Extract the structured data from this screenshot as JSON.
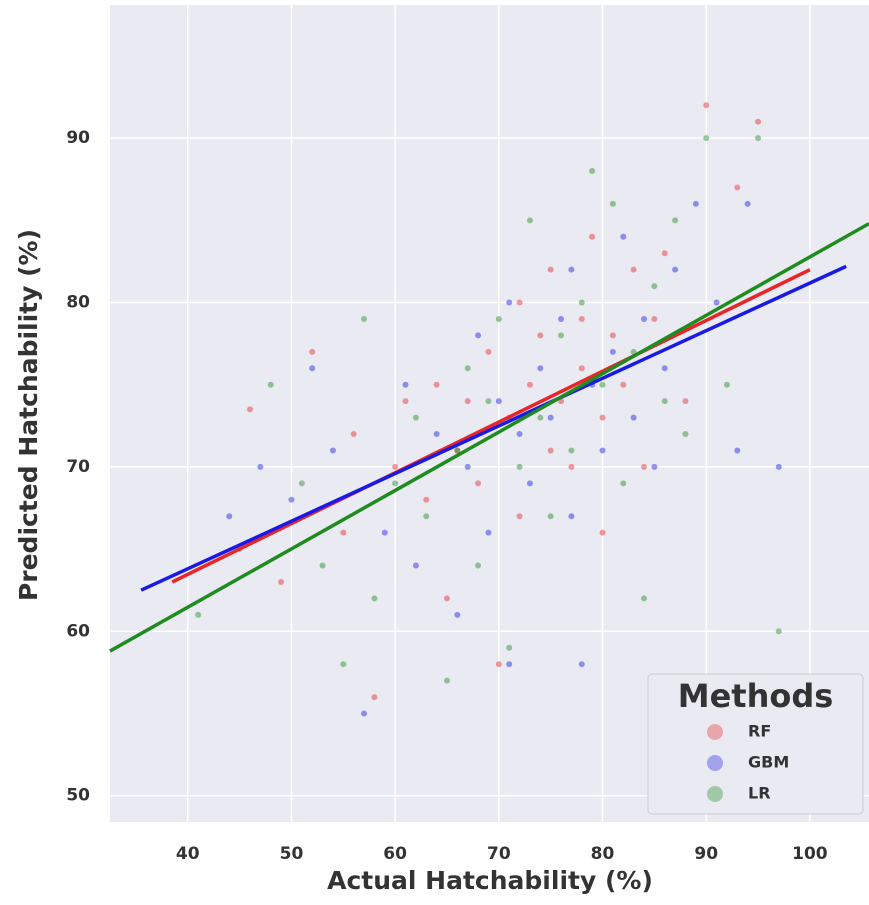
{
  "chart_data": {
    "type": "scatter",
    "xlabel": "Actual Hatchability (%)",
    "ylabel": "Predicted Hatchability (%)",
    "xlim": [
      32.5,
      105.7
    ],
    "ylim": [
      48.4,
      98.1
    ],
    "xticks": [
      40,
      50,
      60,
      70,
      80,
      90,
      100
    ],
    "yticks": [
      50,
      60,
      70,
      80,
      90
    ],
    "grid": true,
    "legend_title": "Methods",
    "legend_position": "lower right",
    "series": [
      {
        "name": "RF",
        "color": "#e8262a",
        "x": [
          46,
          49,
          52,
          55,
          56,
          58,
          60,
          61,
          63,
          64,
          65,
          66,
          67,
          68,
          69,
          70,
          71,
          72,
          72,
          73,
          74,
          75,
          75,
          76,
          77,
          78,
          78,
          79,
          80,
          80,
          81,
          82,
          83,
          84,
          85,
          86,
          88,
          90,
          93,
          95
        ],
        "values": [
          73.5,
          63,
          77,
          66,
          72,
          56,
          70,
          74,
          68,
          75,
          62,
          71,
          74,
          69,
          77,
          58,
          73,
          80,
          67,
          75,
          78,
          71,
          82,
          74,
          70,
          79,
          76,
          84,
          73,
          66,
          78,
          75,
          82,
          70,
          79,
          83,
          74,
          92,
          87,
          91
        ],
        "fit": {
          "x": [
            38.5,
            100
          ],
          "values": [
            63,
            82
          ]
        }
      },
      {
        "name": "GBM",
        "color": "#1a1ae6",
        "x": [
          44,
          47,
          50,
          52,
          54,
          57,
          59,
          61,
          62,
          64,
          66,
          67,
          68,
          69,
          70,
          71,
          71,
          72,
          73,
          74,
          75,
          76,
          77,
          77,
          78,
          79,
          80,
          81,
          82,
          83,
          84,
          85,
          86,
          87,
          89,
          91,
          93,
          94,
          97
        ],
        "values": [
          67,
          70,
          68,
          76,
          71,
          55,
          66,
          75,
          64,
          72,
          61,
          70,
          78,
          66,
          74,
          58,
          80,
          72,
          69,
          76,
          73,
          79,
          67,
          82,
          58,
          75,
          71,
          77,
          84,
          73,
          79,
          70,
          76,
          82,
          86,
          80,
          71,
          86,
          70
        ],
        "fit": {
          "x": [
            35.5,
            103.5
          ],
          "values": [
            62.5,
            82.2
          ]
        }
      },
      {
        "name": "LR",
        "color": "#1e8c1e",
        "x": [
          41,
          45,
          48,
          51,
          53,
          55,
          57,
          58,
          60,
          62,
          63,
          65,
          66,
          67,
          68,
          69,
          70,
          71,
          72,
          73,
          74,
          75,
          76,
          77,
          78,
          79,
          80,
          81,
          82,
          83,
          84,
          85,
          86,
          87,
          88,
          90,
          92,
          95,
          97
        ],
        "values": [
          61,
          65,
          75,
          69,
          64,
          58,
          79,
          62,
          69,
          73,
          67,
          57,
          71,
          76,
          64,
          74,
          79,
          59,
          70,
          85,
          73,
          67,
          78,
          71,
          80,
          88,
          75,
          86,
          69,
          77,
          62,
          81,
          74,
          85,
          72,
          90,
          75,
          90,
          60
        ],
        "fit": {
          "x": [
            32.5,
            105.7
          ],
          "values": [
            58.8,
            84.8
          ]
        }
      }
    ]
  }
}
